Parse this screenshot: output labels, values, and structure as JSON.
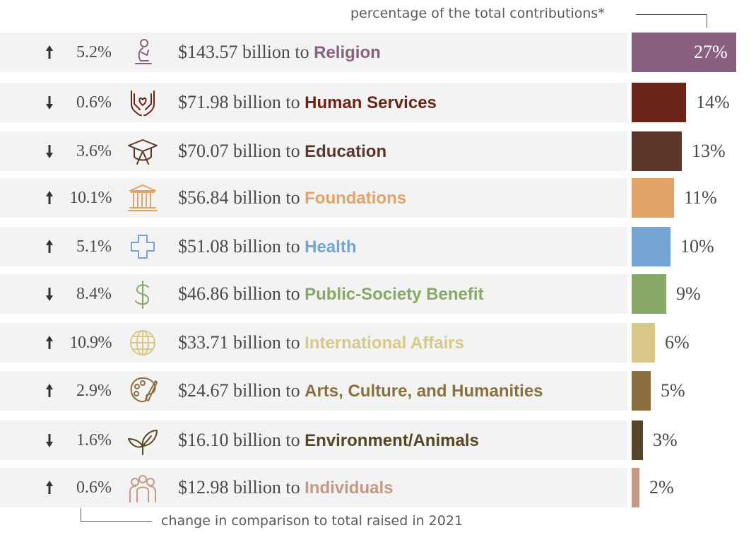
{
  "header_note": "percentage of the total contributions*",
  "footer_note": "change in comparison to total raised in 2021",
  "amount_joiner": "billion to",
  "chart_data": {
    "type": "bar",
    "orientation": "horizontal",
    "title": "",
    "value_unit": "% of total contributions",
    "xlim": [
      0,
      27
    ],
    "categories": [
      "Religion",
      "Human Services",
      "Education",
      "Foundations",
      "Health",
      "Public-Society Benefit",
      "International Affairs",
      "Arts, Culture, and Humanities",
      "Environment/Animals",
      "Individuals"
    ],
    "values": [
      27,
      14,
      13,
      11,
      10,
      9,
      6,
      5,
      3,
      2
    ],
    "rows": [
      {
        "category": "Religion",
        "amount": "$143.57",
        "change": "5.2%",
        "direction": "up",
        "share": "27%",
        "value": 27,
        "color": "#8a6080",
        "icon": "praying-person-icon"
      },
      {
        "category": "Human Services",
        "amount": "$71.98",
        "change": "0.6%",
        "direction": "down",
        "share": "14%",
        "value": 14,
        "color": "#6b2516",
        "icon": "caring-hands-icon"
      },
      {
        "category": "Education",
        "amount": "$70.07",
        "change": "3.6%",
        "direction": "down",
        "share": "13%",
        "value": 13,
        "color": "#5c3628",
        "icon": "graduation-cap-icon"
      },
      {
        "category": "Foundations",
        "amount": "$56.84",
        "change": "10.1%",
        "direction": "up",
        "share": "11%",
        "value": 11,
        "color": "#e2a466",
        "icon": "building-columns-icon"
      },
      {
        "category": "Health",
        "amount": "$51.08",
        "change": "5.1%",
        "direction": "up",
        "share": "10%",
        "value": 10,
        "color": "#74a3d4",
        "icon": "medical-cross-icon"
      },
      {
        "category": "Public-Society Benefit",
        "amount": "$46.86",
        "change": "8.4%",
        "direction": "down",
        "share": "9%",
        "value": 9,
        "color": "#88a866",
        "icon": "dollar-sign-icon"
      },
      {
        "category": "International Affairs",
        "amount": "$33.71",
        "change": "10.9%",
        "direction": "up",
        "share": "6%",
        "value": 6,
        "color": "#d8c88a",
        "icon": "globe-icon"
      },
      {
        "category": "Arts, Culture, and Humanities",
        "amount": "$24.67",
        "change": "2.9%",
        "direction": "up",
        "share": "5%",
        "value": 5,
        "color": "#8a7040",
        "icon": "palette-icon"
      },
      {
        "category": "Environment/Animals",
        "amount": "$16.10",
        "change": "1.6%",
        "direction": "down",
        "share": "3%",
        "value": 3,
        "color": "#574527",
        "icon": "leaf-icon"
      },
      {
        "category": "Individuals",
        "amount": "$12.98",
        "change": "0.6%",
        "direction": "up",
        "share": "2%",
        "value": 2,
        "color": "#c49a86",
        "icon": "people-group-icon"
      }
    ]
  }
}
